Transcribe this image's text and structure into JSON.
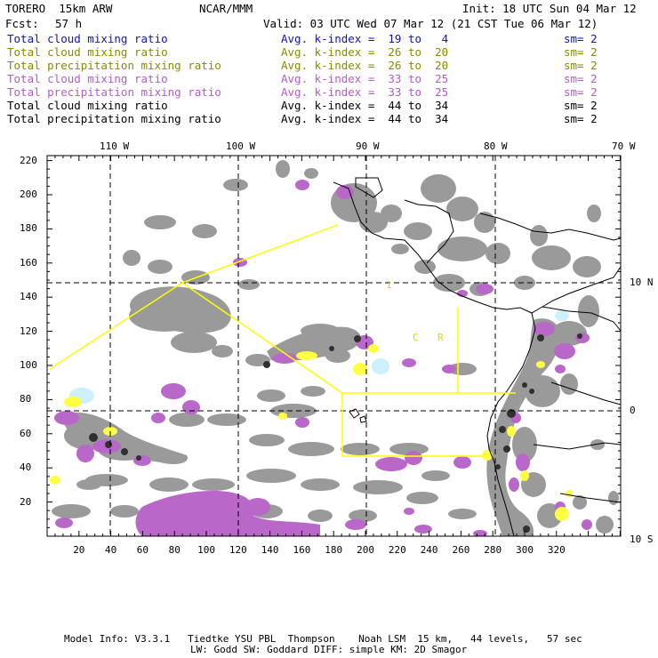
{
  "header": {
    "model": "TORERO  15km ARW",
    "org": "NCAR/MMM",
    "init": "Init: 18 UTC Sun 04 Mar 12",
    "fcst_label": "Fcst:",
    "fcst_value": "57 h",
    "valid": "Valid: 03 UTC Wed 07 Mar 12 (21 CST Tue 06 Mar 12)"
  },
  "legend": [
    {
      "field": "Total cloud mixing ratio",
      "kindex": "Avg. k-index =  19 to   4",
      "sm": "sm= 2",
      "color": "#1010d0"
    },
    {
      "field": "Total cloud mixing ratio",
      "kindex": "Avg. k-index =  26 to  20",
      "sm": "sm= 2",
      "color": "#8a8a00"
    },
    {
      "field": "Total precipitation mixing ratio",
      "kindex": "Avg. k-index =  26 to  20",
      "sm": "sm= 2",
      "color": "#8a8a00"
    },
    {
      "field": "Total cloud mixing ratio",
      "kindex": "Avg. k-index =  33 to  25",
      "sm": "sm= 2",
      "color": "#b25cc9"
    },
    {
      "field": "Total precipitation mixing ratio",
      "kindex": "Avg. k-index =  33 to  25",
      "sm": "sm= 2",
      "color": "#b25cc9"
    },
    {
      "field": "Total cloud mixing ratio",
      "kindex": "Avg. k-index =  44 to  34",
      "sm": "sm= 2",
      "color": "#000000"
    },
    {
      "field": "Total precipitation mixing ratio",
      "kindex": "Avg. k-index =  44 to  34",
      "sm": "sm= 2",
      "color": "#000000"
    }
  ],
  "axes": {
    "top_lon": [
      "110 W",
      "100 W",
      "90 W",
      "80 W",
      "70 W"
    ],
    "right_lat": [
      "10 N",
      "0",
      "10 S"
    ],
    "left_y": [
      "220",
      "200",
      "180",
      "160",
      "140",
      "120",
      "100",
      "80",
      "60",
      "40",
      "20"
    ],
    "bottom_x": [
      "20",
      "40",
      "60",
      "80",
      "100",
      "120",
      "140",
      "160",
      "180",
      "200",
      "220",
      "240",
      "260",
      "280",
      "300",
      "320"
    ]
  },
  "region_labels": {
    "label_1": "1",
    "label_c": "C",
    "label_r": "R"
  },
  "footer": {
    "line1": "Model Info: V3.3.1   Tiedtke YSU PBL  Thompson    Noah LSM  15 km,   44 levels,   57 sec",
    "line2": "LW: Godd SW: Goddard DIFF: simple KM: 2D Smagor"
  },
  "colors": {
    "gray_cloud": "#9a9a9a",
    "dark_core": "#303030",
    "purple": "#b967c9",
    "yellow": "#ffff44",
    "light_blue": "#ccf0ff",
    "box_line": "#ffff00"
  }
}
